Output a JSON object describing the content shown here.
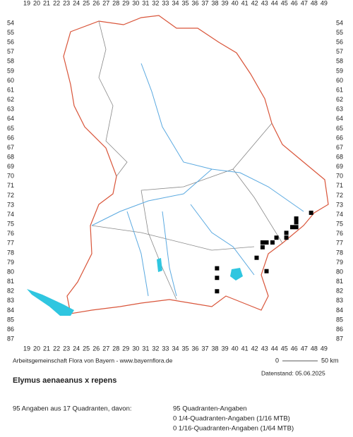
{
  "columns": [
    19,
    20,
    21,
    22,
    23,
    24,
    25,
    26,
    27,
    28,
    29,
    30,
    31,
    32,
    33,
    34,
    35,
    36,
    37,
    38,
    39,
    40,
    41,
    42,
    43,
    44,
    45,
    46,
    47,
    48,
    49
  ],
  "rows": [
    54,
    55,
    56,
    57,
    58,
    59,
    60,
    61,
    62,
    63,
    64,
    65,
    66,
    67,
    68,
    69,
    70,
    71,
    72,
    73,
    74,
    75,
    76,
    77,
    78,
    79,
    80,
    81,
    82,
    83,
    84,
    85,
    86,
    87
  ],
  "points": [
    [
      47.7,
      73.8
    ],
    [
      46.2,
      74.4
    ],
    [
      46.2,
      74.8
    ],
    [
      45.8,
      75.3
    ],
    [
      46.2,
      75.3
    ],
    [
      45.2,
      75.9
    ],
    [
      45.2,
      76.4
    ],
    [
      44.2,
      76.4
    ],
    [
      43.8,
      76.9
    ],
    [
      43.2,
      76.9
    ],
    [
      42.8,
      76.9
    ],
    [
      42.8,
      77.4
    ],
    [
      42.2,
      78.5
    ],
    [
      43.2,
      79.9
    ],
    [
      38.2,
      79.6
    ],
    [
      38.2,
      80.6
    ],
    [
      38.2,
      82.0
    ]
  ],
  "footer": {
    "credit": "Arbeitsgemeinschaft Flora von Bayern - www.bayernflora.de",
    "scale_start": "0",
    "scale_end": "50 km",
    "date": "Datenstand: 05.06.2025"
  },
  "species": "Elymus aenaeanus x repens",
  "summary": {
    "total": "95 Angaben aus 17 Quadranten, davon:",
    "lines": [
      "95 Quadranten-Angaben",
      "0 1/4-Quadranten-Angaben (1/16 MTB)",
      "0 1/16-Quadranten-Angaben (1/64 MTB)"
    ]
  }
}
